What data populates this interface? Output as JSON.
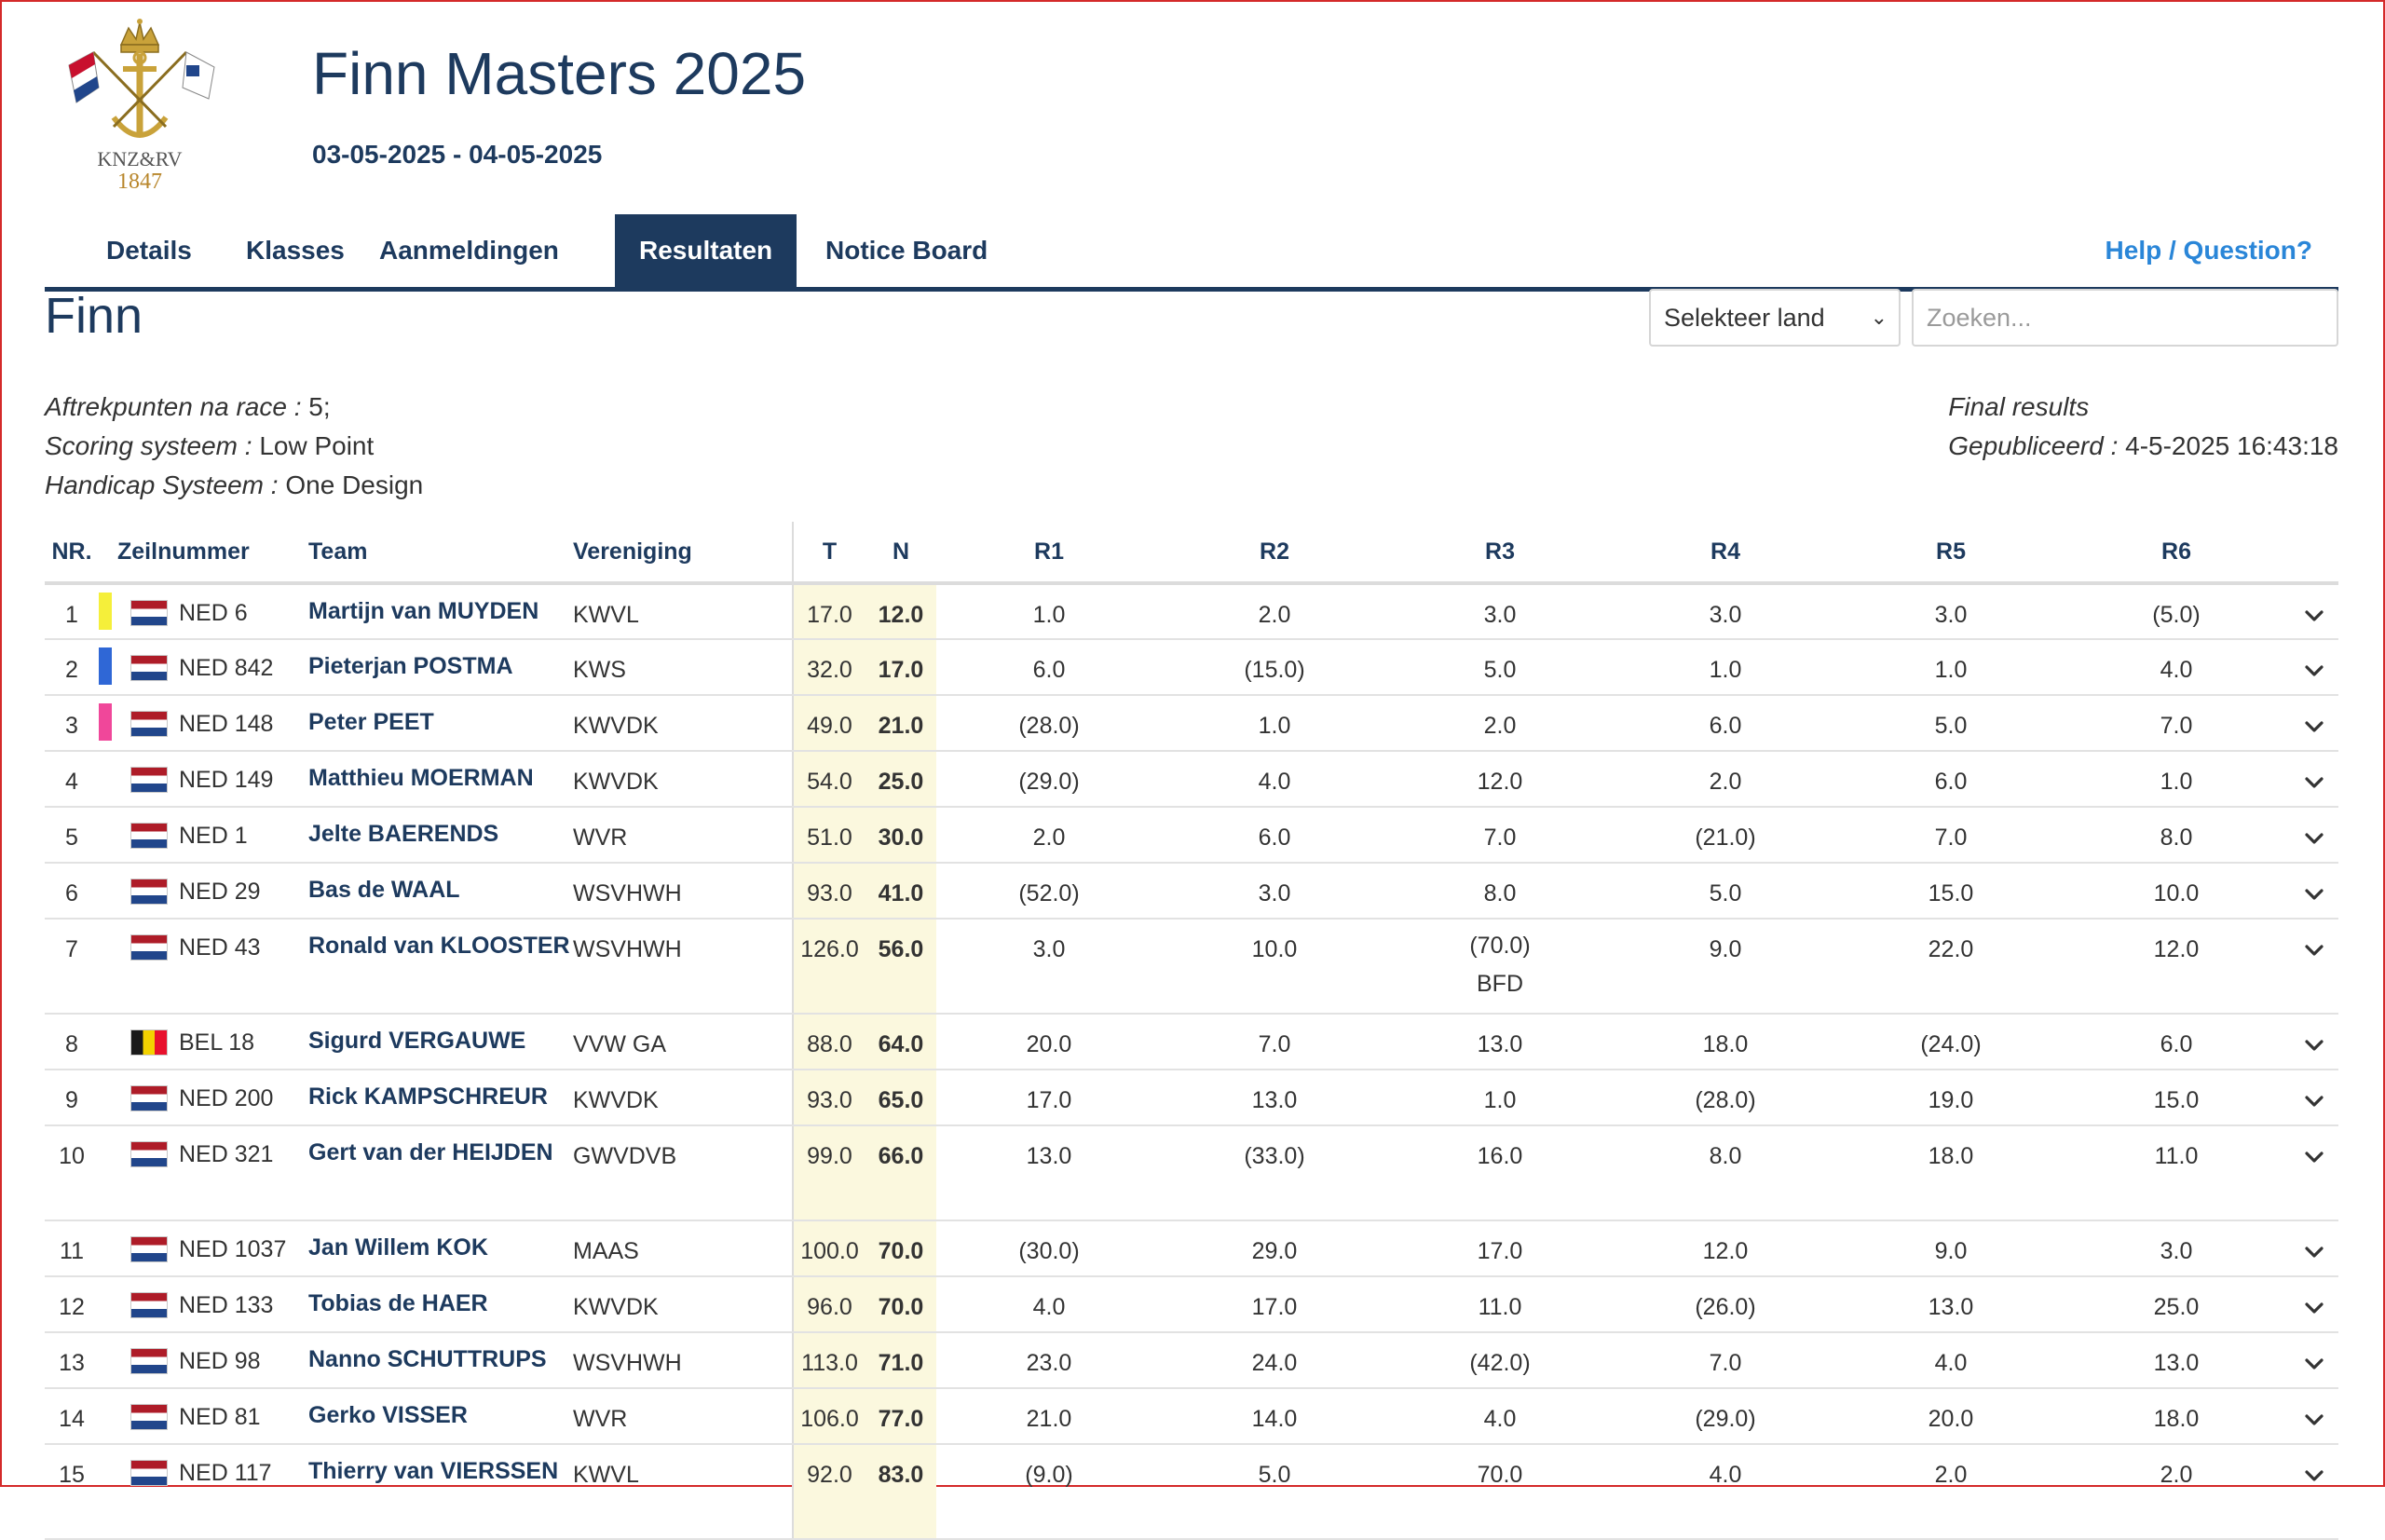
{
  "header": {
    "logo_text": "KNZ&RV",
    "logo_year": "1847",
    "event_title": "Finn Masters 2025",
    "event_dates": "03-05-2025 - 04-05-2025"
  },
  "nav": {
    "tabs": [
      {
        "label": "Details",
        "active": false
      },
      {
        "label": "Klasses",
        "active": false
      },
      {
        "label": "Aanmeldingen",
        "active": false
      },
      {
        "label": "Resultaten",
        "active": true
      },
      {
        "label": "Notice Board",
        "active": false
      }
    ],
    "help_label": "Help / Question?"
  },
  "class_title": "Finn",
  "filters": {
    "country_select_value": "Selekteer land",
    "search_placeholder": "Zoeken..."
  },
  "info": {
    "discard_label": "Aftrekpunten na race :",
    "discard_value": "5;",
    "scoring_label": "Scoring systeem :",
    "scoring_value": "Low Point",
    "handicap_label": "Handicap Systeem :",
    "handicap_value": "One Design",
    "status": "Final results",
    "published_label": "Gepubliceerd :",
    "published_value": "4-5-2025 16:43:18"
  },
  "table": {
    "headers": {
      "nr": "NR.",
      "sail": "Zeilnummer",
      "team": "Team",
      "club": "Vereniging",
      "t": "T",
      "n": "N",
      "r1": "R1",
      "r2": "R2",
      "r3": "R3",
      "r4": "R4",
      "r5": "R5",
      "r6": "R6"
    },
    "rows": [
      {
        "nr": "1",
        "marker": "#f5ef3a",
        "flag": "NED",
        "sail": "NED 6",
        "team": "Martijn van MUYDEN",
        "club": "KWVL",
        "t": "17.0",
        "n": "12.0",
        "r": [
          "1.0",
          "2.0",
          "3.0",
          "3.0",
          "3.0",
          "(5.0)"
        ]
      },
      {
        "nr": "2",
        "marker": "#2f67d6",
        "flag": "NED",
        "sail": "NED 842",
        "team": "Pieterjan POSTMA",
        "club": "KWS",
        "t": "32.0",
        "n": "17.0",
        "r": [
          "6.0",
          "(15.0)",
          "5.0",
          "1.0",
          "1.0",
          "4.0"
        ]
      },
      {
        "nr": "3",
        "marker": "#f0479a",
        "flag": "NED",
        "sail": "NED 148",
        "team": "Peter PEET",
        "club": "KWVDK",
        "t": "49.0",
        "n": "21.0",
        "r": [
          "(28.0)",
          "1.0",
          "2.0",
          "6.0",
          "5.0",
          "7.0"
        ]
      },
      {
        "nr": "4",
        "marker": "",
        "flag": "NED",
        "sail": "NED 149",
        "team": "Matthieu MOERMAN",
        "club": "KWVDK",
        "t": "54.0",
        "n": "25.0",
        "r": [
          "(29.0)",
          "4.0",
          "12.0",
          "2.0",
          "6.0",
          "1.0"
        ]
      },
      {
        "nr": "5",
        "marker": "",
        "flag": "NED",
        "sail": "NED 1",
        "team": "Jelte BAERENDS",
        "club": "WVR",
        "t": "51.0",
        "n": "30.0",
        "r": [
          "2.0",
          "6.0",
          "7.0",
          "(21.0)",
          "7.0",
          "8.0"
        ]
      },
      {
        "nr": "6",
        "marker": "",
        "flag": "NED",
        "sail": "NED 29",
        "team": "Bas de WAAL",
        "club": "WSVHWH",
        "t": "93.0",
        "n": "41.0",
        "r": [
          "(52.0)",
          "3.0",
          "8.0",
          "5.0",
          "15.0",
          "10.0"
        ]
      },
      {
        "nr": "7",
        "marker": "",
        "flag": "NED",
        "sail": "NED 43",
        "team": "Ronald van KLOOSTER",
        "club": "WSVHWH",
        "t": "126.0",
        "n": "56.0",
        "r": [
          "3.0",
          "10.0",
          "(70.0) BFD",
          "9.0",
          "22.0",
          "12.0"
        ]
      },
      {
        "nr": "8",
        "marker": "",
        "flag": "BEL",
        "sail": "BEL 18",
        "team": "Sigurd VERGAUWE",
        "club": "VVW GA",
        "t": "88.0",
        "n": "64.0",
        "r": [
          "20.0",
          "7.0",
          "13.0",
          "18.0",
          "(24.0)",
          "6.0"
        ]
      },
      {
        "nr": "9",
        "marker": "",
        "flag": "NED",
        "sail": "NED 200",
        "team": "Rick KAMPSCHREUR",
        "club": "KWVDK",
        "t": "93.0",
        "n": "65.0",
        "r": [
          "17.0",
          "13.0",
          "1.0",
          "(28.0)",
          "19.0",
          "15.0"
        ]
      },
      {
        "nr": "10",
        "marker": "",
        "flag": "NED",
        "sail": "NED 321",
        "team": "Gert van der HEIJDEN",
        "club": "GWVDVB",
        "t": "99.0",
        "n": "66.0",
        "r": [
          "13.0",
          "(33.0)",
          "16.0",
          "8.0",
          "18.0",
          "11.0"
        ]
      },
      {
        "nr": "11",
        "marker": "",
        "flag": "NED",
        "sail": "NED 1037",
        "team": "Jan Willem KOK",
        "club": "MAAS",
        "t": "100.0",
        "n": "70.0",
        "r": [
          "(30.0)",
          "29.0",
          "17.0",
          "12.0",
          "9.0",
          "3.0"
        ]
      },
      {
        "nr": "12",
        "marker": "",
        "flag": "NED",
        "sail": "NED 133",
        "team": "Tobias de HAER",
        "club": "KWVDK",
        "t": "96.0",
        "n": "70.0",
        "r": [
          "4.0",
          "17.0",
          "11.0",
          "(26.0)",
          "13.0",
          "25.0"
        ]
      },
      {
        "nr": "13",
        "marker": "",
        "flag": "NED",
        "sail": "NED 98",
        "team": "Nanno SCHUTTRUPS",
        "club": "WSVHWH",
        "t": "113.0",
        "n": "71.0",
        "r": [
          "23.0",
          "24.0",
          "(42.0)",
          "7.0",
          "4.0",
          "13.0"
        ]
      },
      {
        "nr": "14",
        "marker": "",
        "flag": "NED",
        "sail": "NED 81",
        "team": "Gerko VISSER",
        "club": "WVR",
        "t": "106.0",
        "n": "77.0",
        "r": [
          "21.0",
          "14.0",
          "4.0",
          "(29.0)",
          "20.0",
          "18.0"
        ]
      },
      {
        "nr": "15",
        "marker": "",
        "flag": "NED",
        "sail": "NED 117",
        "team": "Thierry van VIERSSEN",
        "club": "KWVL",
        "t": "92.0",
        "n": "83.0",
        "r": [
          "(9.0)",
          "5.0",
          "70.0",
          "4.0",
          "2.0",
          "2.0"
        ]
      }
    ]
  }
}
